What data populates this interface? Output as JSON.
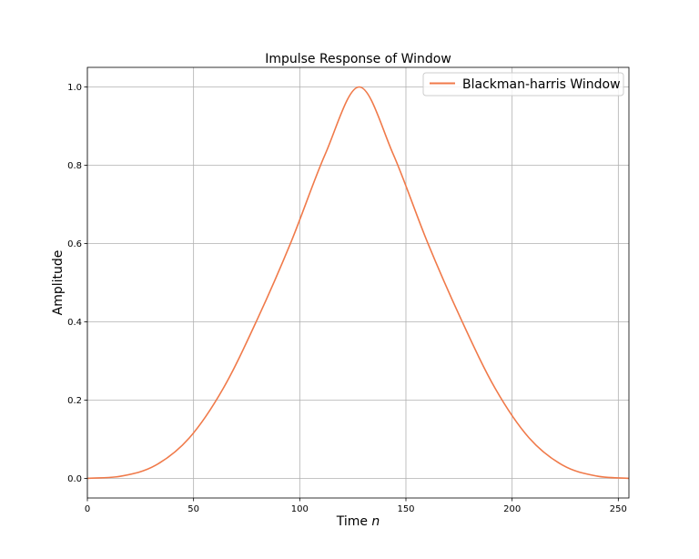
{
  "chart_data": {
    "type": "line",
    "title": "Impulse Response of Window",
    "xlabel_prefix": "Time ",
    "xlabel_var": "n",
    "ylabel": "Amplitude",
    "xlim": [
      0,
      255
    ],
    "ylim": [
      -0.05,
      1.05
    ],
    "xticks": [
      0,
      50,
      100,
      150,
      200,
      250
    ],
    "yticks": [
      0.0,
      0.2,
      0.4,
      0.6,
      0.8,
      1.0
    ],
    "ytick_labels": [
      "0.0",
      "0.2",
      "0.4",
      "0.6",
      "0.8",
      "1.0"
    ],
    "grid": true,
    "legend_position": "upper right",
    "series": [
      {
        "name": "Blackman-harris Window",
        "color": "#f07a4a",
        "x": [
          0,
          16,
          32,
          48,
          64,
          80,
          96,
          112,
          128,
          144,
          160,
          176,
          192,
          208,
          224,
          240,
          255
        ],
        "y": [
          0.0001,
          0.0059,
          0.0332,
          0.1035,
          0.2302,
          0.4063,
          0.6052,
          0.8283,
          1.0,
          0.8283,
          0.6052,
          0.4063,
          0.2302,
          0.1035,
          0.0332,
          0.0059,
          0.0001
        ]
      }
    ]
  }
}
